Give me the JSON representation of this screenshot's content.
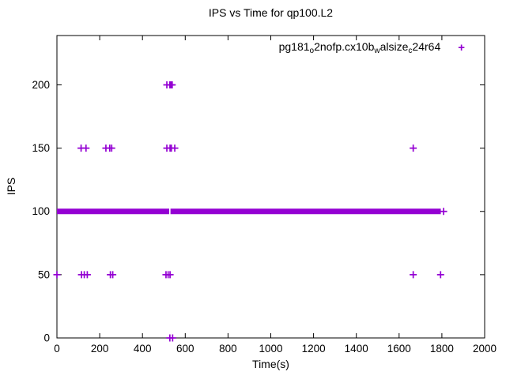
{
  "page": {
    "background": "#ffffff"
  },
  "chart_data": {
    "type": "scatter",
    "title": "IPS vs Time for qp100.L2",
    "xlabel": "Time(s)",
    "ylabel": "IPS",
    "xlim": [
      0,
      2000
    ],
    "ylim": [
      0,
      239
    ],
    "xticks": [
      0,
      200,
      400,
      600,
      800,
      1000,
      1200,
      1400,
      1600,
      1800,
      2000
    ],
    "yticks": [
      0,
      50,
      100,
      150,
      200
    ],
    "grid": false,
    "marker": "plus",
    "marker_color": "#9400D3",
    "axis_color": "#000000",
    "legend_position": "top-right",
    "series": [
      {
        "name": "pg181_o2nofp.cx10b_walsize_c24r64",
        "points": [
          [
            528,
            0
          ],
          [
            541,
            0
          ],
          [
            0,
            50
          ],
          [
            115,
            50
          ],
          [
            128,
            50
          ],
          [
            142,
            50
          ],
          [
            250,
            50
          ],
          [
            261,
            50
          ],
          [
            510,
            50
          ],
          [
            520,
            50
          ],
          [
            529,
            50
          ],
          [
            1666,
            50
          ],
          [
            1794,
            50
          ],
          [
            113,
            150
          ],
          [
            136,
            150
          ],
          [
            229,
            150
          ],
          [
            247,
            150
          ],
          [
            256,
            150
          ],
          [
            514,
            150
          ],
          [
            529,
            150
          ],
          [
            535,
            150
          ],
          [
            551,
            150
          ],
          [
            1666,
            150
          ],
          [
            514,
            200
          ],
          [
            528,
            200
          ],
          [
            533,
            200
          ],
          [
            539,
            200
          ],
          [
            1808,
            100
          ]
        ],
        "bands": [
          {
            "y": 100,
            "x1": 0,
            "x2": 525
          },
          {
            "y": 100,
            "x1": 531,
            "x2": 1795
          }
        ]
      }
    ],
    "legend": {
      "marker_glyph": "+",
      "parts": [
        {
          "t": "pg181"
        },
        {
          "t": "o",
          "sub": true
        },
        {
          "t": "2nofp.cx10b"
        },
        {
          "t": "w",
          "sub": true
        },
        {
          "t": "alsize"
        },
        {
          "t": "c",
          "sub": true
        },
        {
          "t": "24r64"
        }
      ]
    }
  }
}
